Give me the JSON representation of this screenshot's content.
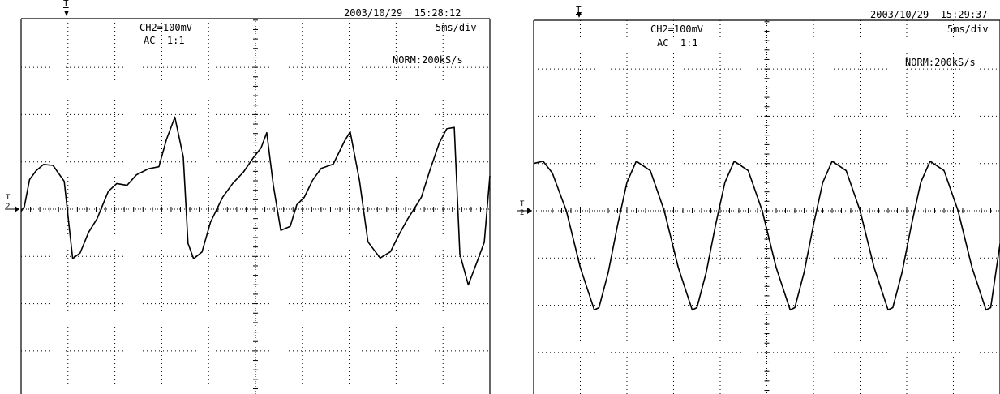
{
  "chart_data": [
    {
      "type": "line",
      "timestamp": "2003/10/29  15:28:12",
      "channel": "CH2=100mV",
      "coupling": "AC  1:1",
      "timebase": "5ms/div",
      "acquisition": "NORM:200kS/s",
      "trigger_marker": "T",
      "level_marker": "T",
      "ground_marker": "2",
      "grid": true,
      "divisions": {
        "x": 10,
        "y": 8
      },
      "xlim": [
        0,
        50
      ],
      "ylim": [
        -400,
        400
      ],
      "xlabel": "",
      "ylabel": "",
      "series": [
        {
          "values_x": [
            0.0,
            0.35,
            0.9,
            1.6,
            2.4,
            3.4,
            4.6,
            5.5,
            6.3,
            7.2,
            8.1,
            9.3,
            10.2,
            11.3,
            12.3,
            13.6,
            14.7,
            15.5,
            16.4,
            17.3,
            17.8,
            18.4,
            19.3,
            20.2,
            21.5,
            22.6,
            23.7,
            24.8,
            25.6,
            26.2,
            26.9,
            27.7,
            28.7,
            29.4,
            30.2,
            31.1,
            32.0,
            33.3,
            34.5,
            35.1,
            36.1,
            37.0,
            38.3,
            39.4,
            40.4,
            41.2,
            41.9,
            42.7,
            43.6,
            44.6,
            45.4,
            46.2,
            46.8,
            47.7,
            48.7,
            49.4,
            50.0
          ],
          "values_y": [
            -3,
            5,
            65,
            80,
            95,
            90,
            60,
            -105,
            -90,
            -50,
            -20,
            35,
            55,
            50,
            75,
            85,
            90,
            145,
            195,
            110,
            -70,
            -105,
            -90,
            -30,
            25,
            55,
            80,
            110,
            130,
            160,
            50,
            -45,
            -35,
            10,
            25,
            60,
            85,
            95,
            145,
            165,
            60,
            -70,
            -105,
            -90,
            -50,
            -20,
            0,
            25,
            80,
            140,
            170,
            175,
            -95,
            -160,
            -110,
            -70,
            70
          ]
        }
      ]
    },
    {
      "type": "line",
      "timestamp": "2003/10/29  15:29:37",
      "channel": "CH2=100mV",
      "coupling": "AC  1:1",
      "timebase": "5ms/div",
      "acquisition": "NORM:200kS/s",
      "trigger_marker": "T",
      "level_marker": "T",
      "ground_marker": "2",
      "grid": true,
      "divisions": {
        "x": 10,
        "y": 8
      },
      "xlim": [
        0,
        50
      ],
      "ylim": [
        -400,
        400
      ],
      "xlabel": "",
      "ylabel": "",
      "series": [
        {
          "values_x": [
            0.0,
            1.0,
            2.0,
            3.5,
            5.0,
            6.5,
            7.0,
            8.0,
            9.0,
            10.0,
            11.0,
            12.5,
            14.0,
            15.5,
            17.0,
            17.5,
            18.5,
            19.5,
            20.5,
            21.5,
            23.0,
            24.5,
            26.0,
            27.5,
            28.0,
            29.0,
            30.0,
            31.0,
            32.0,
            33.5,
            35.0,
            36.5,
            38.0,
            38.5,
            39.5,
            40.5,
            41.5,
            42.5,
            44.0,
            45.5,
            47.0,
            48.5,
            49.0,
            50.0
          ],
          "values_y": [
            100,
            105,
            80,
            0,
            -120,
            -210,
            -205,
            -130,
            -30,
            60,
            105,
            85,
            0,
            -120,
            -210,
            -205,
            -130,
            -30,
            60,
            105,
            85,
            0,
            -120,
            -210,
            -205,
            -130,
            -30,
            60,
            105,
            85,
            0,
            -120,
            -210,
            -205,
            -130,
            -30,
            60,
            105,
            85,
            0,
            -120,
            -210,
            -205,
            -70
          ]
        }
      ]
    }
  ]
}
